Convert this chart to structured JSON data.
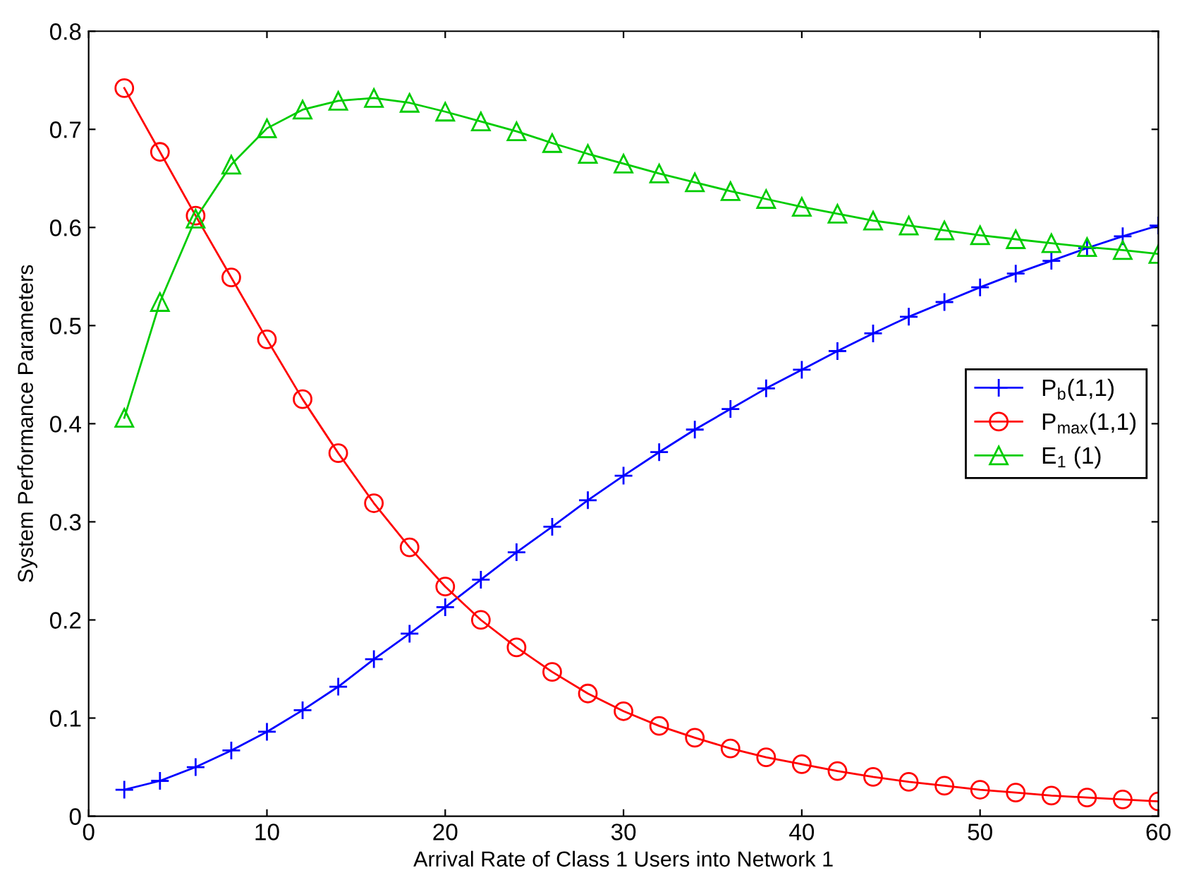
{
  "chart_data": {
    "type": "line",
    "xlabel": "Arrival Rate of Class 1 Users into Network 1",
    "ylabel": "System Performance Parameters",
    "x": [
      2,
      4,
      6,
      8,
      10,
      12,
      14,
      16,
      18,
      20,
      22,
      24,
      26,
      28,
      30,
      32,
      34,
      36,
      38,
      40,
      42,
      44,
      46,
      48,
      50,
      52,
      54,
      56,
      58,
      60
    ],
    "series": [
      {
        "name": "P$_{b}$(1,1)",
        "color": "#0000ff",
        "marker": "cross",
        "values": [
          0.027,
          0.036,
          0.05,
          0.067,
          0.086,
          0.108,
          0.132,
          0.16,
          0.186,
          0.213,
          0.241,
          0.269,
          0.295,
          0.322,
          0.347,
          0.371,
          0.394,
          0.415,
          0.436,
          0.455,
          0.474,
          0.492,
          0.509,
          0.524,
          0.539,
          0.553,
          0.566,
          0.579,
          0.591,
          0.602
        ]
      },
      {
        "name": "P$_{max}$(1,1)",
        "color": "#ff0000",
        "marker": "circle",
        "values": [
          0.742,
          0.677,
          0.612,
          0.549,
          0.486,
          0.425,
          0.37,
          0.319,
          0.274,
          0.234,
          0.2,
          0.172,
          0.147,
          0.125,
          0.107,
          0.092,
          0.08,
          0.069,
          0.06,
          0.053,
          0.046,
          0.04,
          0.035,
          0.031,
          0.027,
          0.024,
          0.021,
          0.019,
          0.017,
          0.015
        ]
      },
      {
        "name": "E$_{1}$ (1)",
        "color": "#00cc00",
        "marker": "triangle",
        "values": [
          0.406,
          0.524,
          0.609,
          0.664,
          0.701,
          0.72,
          0.729,
          0.732,
          0.727,
          0.718,
          0.708,
          0.698,
          0.686,
          0.675,
          0.665,
          0.655,
          0.646,
          0.637,
          0.629,
          0.621,
          0.614,
          0.607,
          0.602,
          0.597,
          0.592,
          0.588,
          0.584,
          0.58,
          0.577,
          0.573
        ]
      }
    ],
    "xlim": [
      0,
      60
    ],
    "xticks": [
      0,
      10,
      20,
      30,
      40,
      50,
      60
    ],
    "ylim": [
      0,
      0.8
    ],
    "yticks": [
      0,
      0.1,
      0.2,
      0.3,
      0.4,
      0.5,
      0.6,
      0.7,
      0.8
    ],
    "grid": false,
    "legend": "center right",
    "line_style": "solid"
  }
}
